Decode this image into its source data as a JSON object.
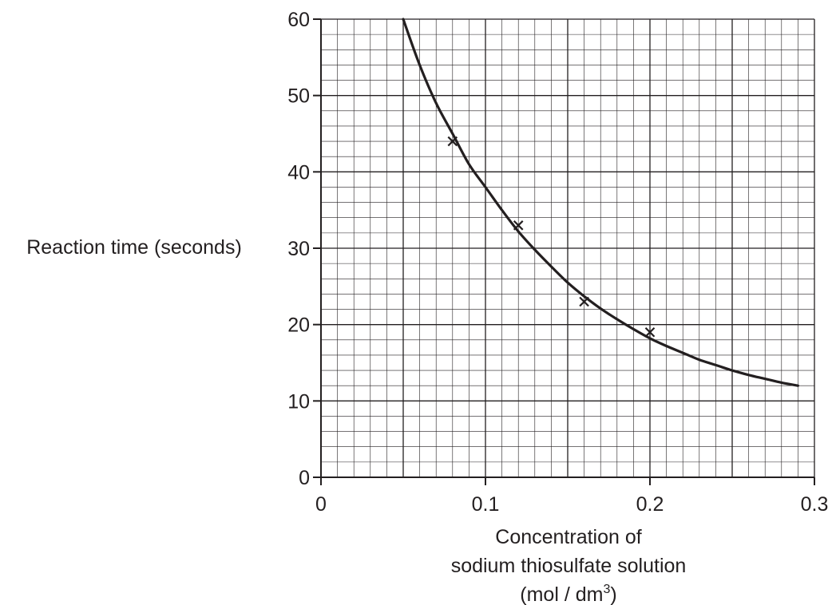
{
  "chart_data": {
    "type": "scatter",
    "ylabel": "Reaction time (seconds)",
    "xlabel_lines": [
      "Concentration of",
      "sodium thiosulfate solution"
    ],
    "xlabel_unit": {
      "prefix": "(mol / dm",
      "sup": "3",
      "suffix": ")"
    },
    "xlim": [
      0,
      0.3
    ],
    "ylim": [
      0,
      60
    ],
    "x_ticks": [
      0,
      0.1,
      0.2,
      0.3
    ],
    "x_tick_labels": [
      "0",
      "0.1",
      "0.2",
      "0.3"
    ],
    "y_ticks": [
      0,
      10,
      20,
      30,
      40,
      50,
      60
    ],
    "y_tick_labels": [
      "0",
      "10",
      "20",
      "30",
      "40",
      "50",
      "60"
    ],
    "grid": true,
    "points": [
      {
        "x": 0.08,
        "y": 44
      },
      {
        "x": 0.12,
        "y": 33
      },
      {
        "x": 0.16,
        "y": 23
      },
      {
        "x": 0.2,
        "y": 19
      }
    ],
    "curve": [
      {
        "x": 0.05,
        "y": 60
      },
      {
        "x": 0.06,
        "y": 54
      },
      {
        "x": 0.07,
        "y": 49
      },
      {
        "x": 0.08,
        "y": 45
      },
      {
        "x": 0.09,
        "y": 41
      },
      {
        "x": 0.1,
        "y": 38
      },
      {
        "x": 0.11,
        "y": 35
      },
      {
        "x": 0.12,
        "y": 32.2
      },
      {
        "x": 0.13,
        "y": 29.8
      },
      {
        "x": 0.14,
        "y": 27.6
      },
      {
        "x": 0.15,
        "y": 25.5
      },
      {
        "x": 0.16,
        "y": 23.7
      },
      {
        "x": 0.17,
        "y": 22.1
      },
      {
        "x": 0.18,
        "y": 20.7
      },
      {
        "x": 0.19,
        "y": 19.4
      },
      {
        "x": 0.2,
        "y": 18.2
      },
      {
        "x": 0.21,
        "y": 17.2
      },
      {
        "x": 0.22,
        "y": 16.3
      },
      {
        "x": 0.23,
        "y": 15.4
      },
      {
        "x": 0.24,
        "y": 14.7
      },
      {
        "x": 0.25,
        "y": 14
      },
      {
        "x": 0.26,
        "y": 13.4
      },
      {
        "x": 0.27,
        "y": 12.9
      },
      {
        "x": 0.28,
        "y": 12.4
      },
      {
        "x": 0.29,
        "y": 12
      }
    ],
    "colors": {
      "ink": "#231f20",
      "grid": "#231f20"
    }
  }
}
